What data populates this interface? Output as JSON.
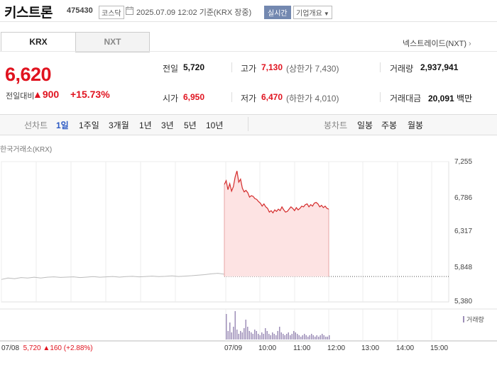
{
  "header": {
    "title": "키스트론",
    "code": "475430",
    "market": "코스닥",
    "as_of": "2025.07.09 12:02  기준(KRX 장중)",
    "realtime_label": "실시간",
    "corp_overview_label": "기업개요"
  },
  "tabs": [
    {
      "label": "KRX",
      "selected": true
    },
    {
      "label": "NXT",
      "selected": false
    }
  ],
  "nxt_link": "넥스트레이드(NXT)",
  "quote": {
    "price": "6,620",
    "change_label": "전일대비",
    "change_arrow": "▲",
    "change_value": "900",
    "change_pct": "+15.73%",
    "prev_label": "전일",
    "prev_value": "5,720",
    "open_label": "시가",
    "open_value": "6,950",
    "high_label": "고가",
    "high_value": "7,130",
    "upper_limit": "(상한가 7,430)",
    "low_label": "저가",
    "low_value": "6,470",
    "lower_limit": "(하한가 4,010)",
    "volume_label": "거래량",
    "volume_value": "2,937,941",
    "amount_label": "거래대금",
    "amount_value": "20,091",
    "amount_unit": "백만"
  },
  "period_bar": {
    "line_label": "선차트",
    "line_items": [
      "1일",
      "1주일",
      "3개월",
      "1년",
      "3년",
      "5년",
      "10년"
    ],
    "selected": "1일",
    "candle_label": "봉차트",
    "candle_items": [
      "일봉",
      "주봉",
      "월봉"
    ]
  },
  "chart_data": {
    "type": "line",
    "source_label": "한국거래소(KRX)",
    "y_ticks": [
      "7,255",
      "6,786",
      "6,317",
      "5,848",
      "5,380"
    ],
    "ylim": [
      5380,
      7255
    ],
    "x_ticks": [
      "07/08",
      "07/09",
      "10:00",
      "11:00",
      "12:00",
      "13:00",
      "14:00",
      "15:00"
    ],
    "prev_close": 5720,
    "series": [
      {
        "values": [
          5680,
          5700,
          5690,
          5705,
          5700,
          5710,
          5700,
          5710,
          5715,
          5708,
          5712,
          5715,
          5705,
          5712,
          5718,
          5710,
          5715,
          5720,
          5712,
          5718,
          5722,
          5715,
          5720,
          5725,
          5718,
          5722,
          5728,
          5720,
          5725,
          5730,
          5738,
          5745,
          5755,
          5762,
          5750
        ]
      },
      {
        "values": [
          6950,
          7000,
          6880,
          6960,
          6860,
          6920,
          7050,
          7130,
          6980,
          7020,
          6900,
          6850,
          6870,
          6840,
          6780,
          6800,
          6790,
          6760,
          6750,
          6720,
          6700,
          6660,
          6690,
          6650,
          6630,
          6580,
          6600,
          6570,
          6610,
          6590,
          6620,
          6600,
          6650,
          6610,
          6580,
          6590,
          6620,
          6650,
          6630,
          6600,
          6640,
          6610,
          6630,
          6660,
          6650,
          6680,
          6690,
          6650,
          6680,
          6660,
          6700,
          6710,
          6690,
          6650,
          6670,
          6640,
          6660,
          6630,
          6620
        ]
      }
    ],
    "volume_legend": "거래량",
    "volume": [
      18,
      6,
      12,
      5,
      9,
      20,
      7,
      4,
      6,
      5,
      8,
      14,
      9,
      6,
      5,
      4,
      7,
      6,
      4,
      3,
      5,
      4,
      8,
      6,
      4,
      3,
      5,
      4,
      3,
      6,
      9,
      5,
      4,
      3,
      4,
      5,
      3,
      4,
      6,
      5,
      4,
      3,
      2,
      3,
      4,
      3,
      2,
      3,
      4,
      3,
      2,
      3,
      2,
      3,
      4,
      3,
      2,
      2,
      3
    ]
  },
  "bottom_info": {
    "date": "07/08",
    "close": "5,720",
    "arrow": "▲",
    "change": "160",
    "pct": "(+2.88%)"
  },
  "colors": {
    "up": "#e0131f",
    "link": "#2b59c3",
    "line_prev": "#bbbbbb",
    "line_today": "#d42b2b",
    "area_today": "#fde3e3",
    "volume": "#9e8fb8"
  }
}
